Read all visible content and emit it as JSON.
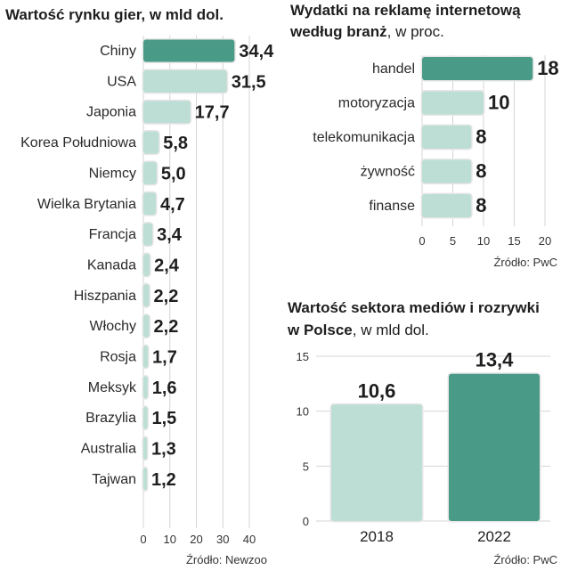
{
  "colors": {
    "accent": "#4a9a88",
    "light": "#bcded5",
    "track": "#e6e6e6",
    "grid": "#d4d4d4"
  },
  "chart_data": [
    {
      "type": "bar",
      "orientation": "horizontal",
      "title": "Wartość rynku gier, w mld dol.",
      "categories": [
        "Chiny",
        "USA",
        "Japonia",
        "Korea Południowa",
        "Niemcy",
        "Wielka Brytania",
        "Francja",
        "Kanada",
        "Hiszpania",
        "Włochy",
        "Rosja",
        "Meksyk",
        "Brazylia",
        "Australia",
        "Tajwan"
      ],
      "values": [
        34.4,
        31.5,
        17.7,
        5.8,
        5.0,
        4.7,
        3.4,
        2.4,
        2.2,
        2.2,
        1.7,
        1.6,
        1.5,
        1.3,
        1.2
      ],
      "labels": [
        "34,4",
        "31,5",
        "17,7",
        "5,8",
        "5,0",
        "4,7",
        "3,4",
        "2,4",
        "2,2",
        "2,2",
        "1,7",
        "1,6",
        "1,5",
        "1,3",
        "1,2"
      ],
      "highlight_index": 0,
      "xlim": [
        0,
        40
      ],
      "xticks": [
        "0",
        "10",
        "20",
        "30",
        "40"
      ],
      "source": "Źródło: Newzoo"
    },
    {
      "type": "bar",
      "orientation": "horizontal",
      "title_line1": "Wydatki na reklamę internetową",
      "title_line2_bold": "według branż",
      "title_line2_rest": ", w proc.",
      "categories": [
        "handel",
        "motoryzacja",
        "telekomunikacja",
        "żywność",
        "finanse"
      ],
      "values": [
        18,
        10,
        8,
        8,
        8
      ],
      "labels": [
        "18",
        "10",
        "8",
        "8",
        "8"
      ],
      "highlight_index": 0,
      "xlim": [
        0,
        20
      ],
      "xticks": [
        "0",
        "5",
        "10",
        "15",
        "20"
      ],
      "source": "Źródło: PwC"
    },
    {
      "type": "bar",
      "orientation": "vertical",
      "title_line1": "Wartość sektora mediów i rozrywki",
      "title_line2_bold": "w Polsce",
      "title_line2_rest": ", w mld dol.",
      "categories": [
        "2018",
        "2022"
      ],
      "values": [
        10.6,
        13.4
      ],
      "labels": [
        "10,6",
        "13,4"
      ],
      "highlight_index": 1,
      "ylim": [
        0,
        15
      ],
      "yticks": [
        "15",
        "10",
        "5",
        "0"
      ],
      "source": "Źródło: PwC"
    }
  ]
}
